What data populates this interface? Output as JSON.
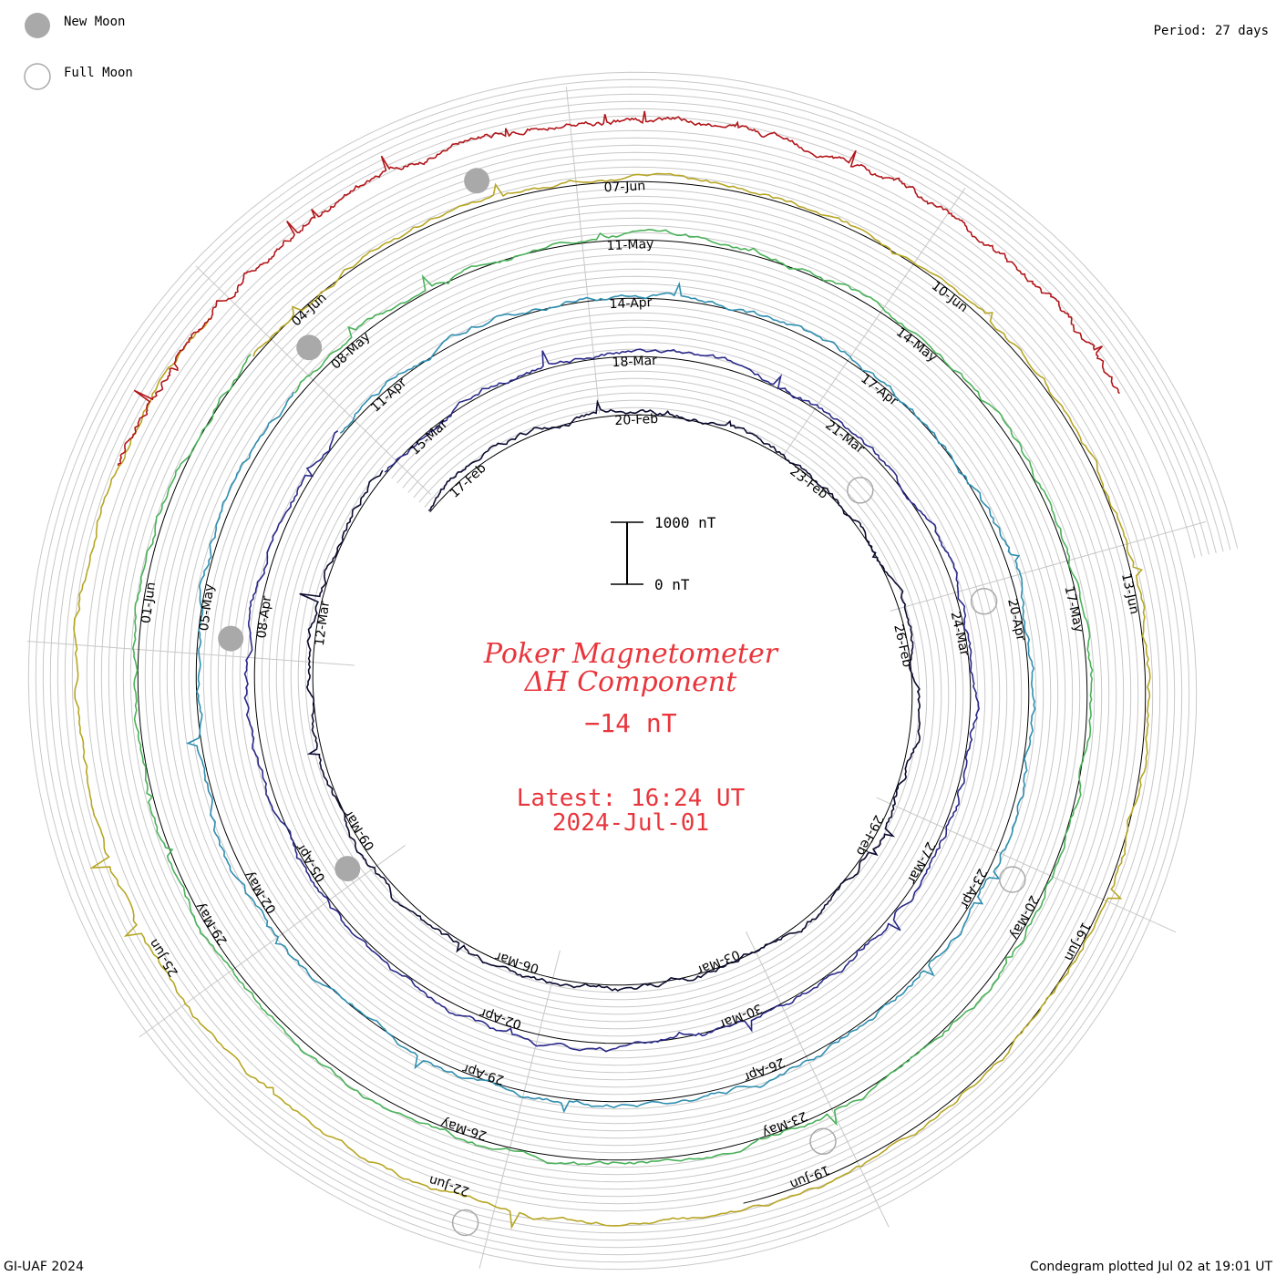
{
  "legend": {
    "new_moon": "New Moon",
    "full_moon": "Full Moon"
  },
  "period": "Period: 27 days",
  "title": {
    "line1": "Poker Magnetometer",
    "line2": "ΔH Component",
    "value": "−14 nT",
    "latest": "Latest: 16:24 UT",
    "date": "2024-Jul-01"
  },
  "scale_bar": {
    "top_label": "1000 nT",
    "bottom_label": "0 nT",
    "top_value_nT": 1000,
    "bottom_value_nT": 0
  },
  "footer": {
    "left": "GI-UAF 2024",
    "right": "Condegram plotted Jul 02 at 19:01 UT"
  },
  "colors": {
    "title": "#e8363c",
    "grid": "#c8c8c8",
    "baseline": "#000000",
    "moon_fill": "#a9a9a9",
    "moon_stroke": "#a9a9a9"
  },
  "chart_data": {
    "type": "line",
    "subtype": "spiral condegram",
    "period_days": 27,
    "rotations": [
      {
        "index": 0,
        "color": "#0b0b30",
        "labels": [
          "17-Feb",
          "20-Feb",
          "23-Feb",
          "26-Feb",
          "29-Feb",
          "03-Mar",
          "06-Mar",
          "09-Mar",
          "12-Mar"
        ]
      },
      {
        "index": 1,
        "color": "#2a2a8a",
        "labels": [
          "15-Mar",
          "18-Mar",
          "21-Mar",
          "24-Mar",
          "27-Mar",
          "30-Mar",
          "02-Apr",
          "05-Apr",
          "08-Apr"
        ]
      },
      {
        "index": 2,
        "color": "#2f8fb0",
        "labels": [
          "11-Apr",
          "14-Apr",
          "17-Apr",
          "20-Apr",
          "23-Apr",
          "26-Apr",
          "29-Apr",
          "02-May",
          "05-May"
        ]
      },
      {
        "index": 3,
        "color": "#4ab25a",
        "labels": [
          "08-May",
          "11-May",
          "14-May",
          "17-May",
          "20-May",
          "23-May",
          "26-May",
          "29-May",
          "01-Jun"
        ]
      },
      {
        "index": 4,
        "color": "#b7a624",
        "labels": [
          "04-Jun",
          "07-Jun",
          "10-Jun",
          "13-Jun",
          "16-Jun",
          "19-Jun",
          "22-Jun",
          "25-Jun"
        ]
      },
      {
        "index": 5,
        "color": "#b2161a",
        "labels": []
      }
    ],
    "new_moons": [
      "09-Mar",
      "08-Apr",
      "08-May",
      "06-Jun"
    ],
    "full_moons": [
      "24-Feb",
      "24-Mar",
      "23-Apr",
      "23-May",
      "22-Jun"
    ],
    "ylabel_units": "nT",
    "scale_nT": [
      0,
      1000
    ]
  }
}
